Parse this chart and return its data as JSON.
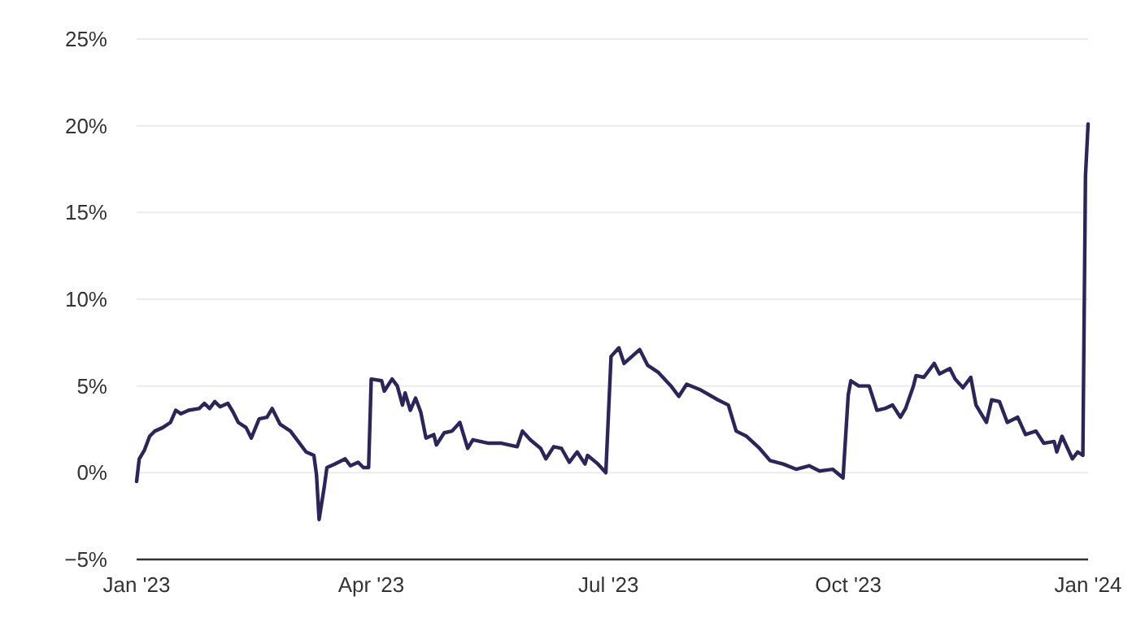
{
  "chart_data": {
    "type": "line",
    "grid": "y",
    "xlim": [
      "2023-01-01",
      "2024-01-01"
    ],
    "xticks": [
      {
        "value": "2023-01-01",
        "label": "Jan '23"
      },
      {
        "value": "2023-04-01",
        "label": "Apr '23"
      },
      {
        "value": "2023-07-01",
        "label": "Jul '23"
      },
      {
        "value": "2023-10-01",
        "label": "Oct '23"
      },
      {
        "value": "2024-01-01",
        "label": "Jan '24"
      }
    ],
    "ylim": [
      -5,
      25
    ],
    "yticks": [
      {
        "value": -5,
        "label": "−5%"
      },
      {
        "value": 0,
        "label": "0%"
      },
      {
        "value": 5,
        "label": "5%"
      },
      {
        "value": 10,
        "label": "10%"
      },
      {
        "value": 15,
        "label": "15%"
      },
      {
        "value": 20,
        "label": "20%"
      },
      {
        "value": 25,
        "label": "25%"
      }
    ],
    "x": [
      "2023-01-01",
      "2023-01-02",
      "2023-01-04",
      "2023-01-06",
      "2023-01-08",
      "2023-01-11",
      "2023-01-14",
      "2023-01-16",
      "2023-01-18",
      "2023-01-21",
      "2023-01-25",
      "2023-01-27",
      "2023-01-29",
      "2023-01-31",
      "2023-02-02",
      "2023-02-05",
      "2023-02-07",
      "2023-02-09",
      "2023-02-12",
      "2023-02-14",
      "2023-02-17",
      "2023-02-20",
      "2023-02-22",
      "2023-02-25",
      "2023-03-01",
      "2023-03-04",
      "2023-03-07",
      "2023-03-10",
      "2023-03-11",
      "2023-03-12",
      "2023-03-14",
      "2023-03-15",
      "2023-03-18",
      "2023-03-22",
      "2023-03-24",
      "2023-03-27",
      "2023-03-29",
      "2023-03-31",
      "2023-04-01",
      "2023-04-05",
      "2023-04-06",
      "2023-04-09",
      "2023-04-11",
      "2023-04-13",
      "2023-04-14",
      "2023-04-16",
      "2023-04-18",
      "2023-04-20",
      "2023-04-22",
      "2023-04-25",
      "2023-04-26",
      "2023-04-29",
      "2023-05-02",
      "2023-05-05",
      "2023-05-08",
      "2023-05-10",
      "2023-05-16",
      "2023-05-21",
      "2023-05-27",
      "2023-05-29",
      "2023-06-01",
      "2023-06-05",
      "2023-06-07",
      "2023-06-10",
      "2023-06-13",
      "2023-06-16",
      "2023-06-19",
      "2023-06-22",
      "2023-06-23",
      "2023-06-27",
      "2023-06-30",
      "2023-07-02",
      "2023-07-05",
      "2023-07-07",
      "2023-07-10",
      "2023-07-13",
      "2023-07-16",
      "2023-07-20",
      "2023-07-25",
      "2023-07-28",
      "2023-07-31",
      "2023-08-05",
      "2023-08-12",
      "2023-08-16",
      "2023-08-19",
      "2023-08-23",
      "2023-08-28",
      "2023-09-01",
      "2023-09-06",
      "2023-09-11",
      "2023-09-16",
      "2023-09-20",
      "2023-09-25",
      "2023-09-29",
      "2023-10-01",
      "2023-10-02",
      "2023-10-05",
      "2023-10-09",
      "2023-10-12",
      "2023-10-15",
      "2023-10-18",
      "2023-10-21",
      "2023-10-23",
      "2023-10-26",
      "2023-10-27",
      "2023-10-30",
      "2023-11-03",
      "2023-11-05",
      "2023-11-09",
      "2023-11-11",
      "2023-11-14",
      "2023-11-17",
      "2023-11-19",
      "2023-11-23",
      "2023-11-25",
      "2023-11-28",
      "2023-12-01",
      "2023-12-05",
      "2023-12-08",
      "2023-12-12",
      "2023-12-15",
      "2023-12-19",
      "2023-12-20",
      "2023-12-22",
      "2023-12-26",
      "2023-12-28",
      "2023-12-30",
      "2023-12-31",
      "2024-01-01"
    ],
    "series": [
      {
        "color": "#2b2559",
        "values": [
          -0.5,
          0.8,
          1.3,
          2.1,
          2.4,
          2.6,
          2.9,
          3.6,
          3.4,
          3.6,
          3.7,
          4.0,
          3.7,
          4.1,
          3.8,
          4.0,
          3.5,
          2.9,
          2.6,
          2.0,
          3.1,
          3.2,
          3.7,
          2.8,
          2.4,
          1.8,
          1.2,
          1.0,
          -0.1,
          -2.7,
          -0.8,
          0.3,
          0.5,
          0.8,
          0.4,
          0.6,
          0.3,
          0.3,
          5.4,
          5.3,
          4.7,
          5.4,
          5.0,
          3.9,
          4.6,
          3.6,
          4.3,
          3.5,
          2.0,
          2.2,
          1.6,
          2.3,
          2.4,
          2.9,
          1.4,
          1.9,
          1.7,
          1.7,
          1.5,
          2.4,
          1.9,
          1.4,
          0.8,
          1.5,
          1.4,
          0.6,
          1.2,
          0.5,
          1.0,
          0.5,
          0.0,
          6.7,
          7.2,
          6.3,
          6.7,
          7.1,
          6.2,
          5.8,
          5.0,
          4.4,
          5.1,
          4.8,
          4.2,
          3.9,
          2.4,
          2.1,
          1.4,
          0.7,
          0.5,
          0.2,
          0.4,
          0.1,
          0.2,
          -0.3,
          4.5,
          5.3,
          5.0,
          5.0,
          3.6,
          3.7,
          3.9,
          3.2,
          3.7,
          5.0,
          5.6,
          5.5,
          6.3,
          5.7,
          6.0,
          5.4,
          4.9,
          5.5,
          3.9,
          2.9,
          4.2,
          4.1,
          2.9,
          3.2,
          2.2,
          2.4,
          1.7,
          1.8,
          1.2,
          2.1,
          0.8,
          1.2,
          1.0,
          17.1,
          20.1
        ]
      }
    ]
  }
}
